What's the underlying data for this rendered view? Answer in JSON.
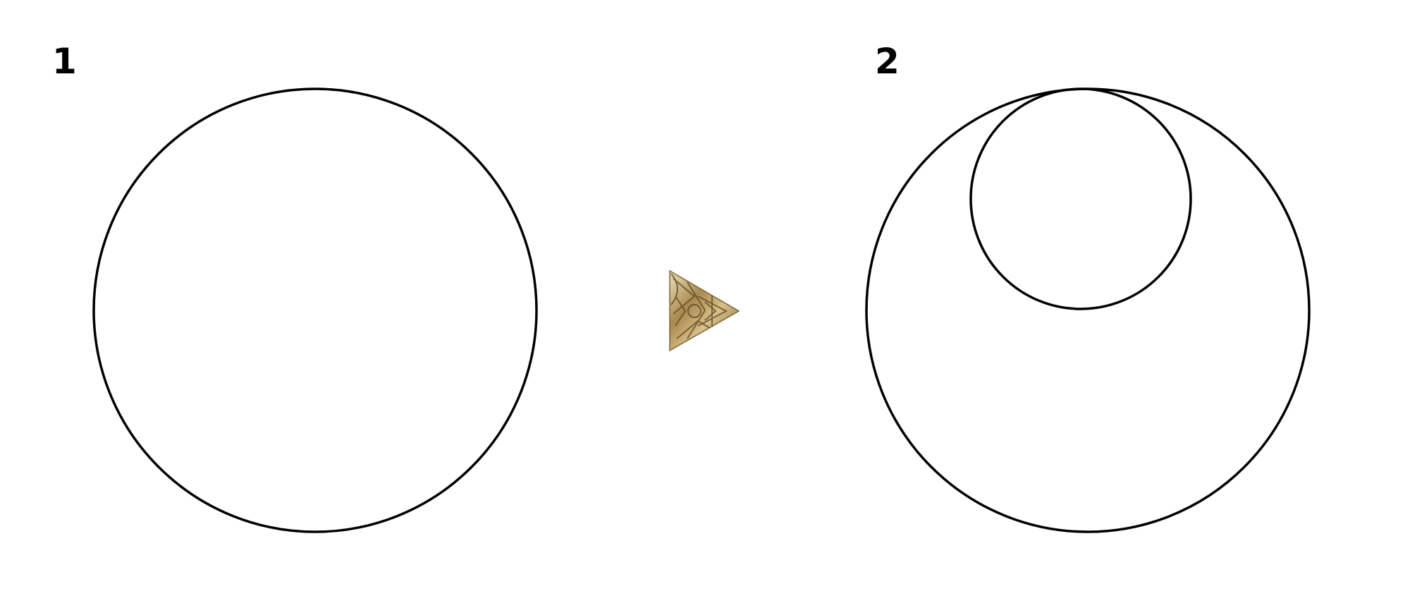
{
  "panels": [
    {
      "label": "1"
    },
    {
      "label": "2"
    }
  ],
  "arrow": {
    "icon": "ornate-play-triangle-icon",
    "colors": [
      "#a98a4f",
      "#d8c08a",
      "#6e5a30",
      "#efe2bf"
    ]
  },
  "stroke_color": "#000000"
}
